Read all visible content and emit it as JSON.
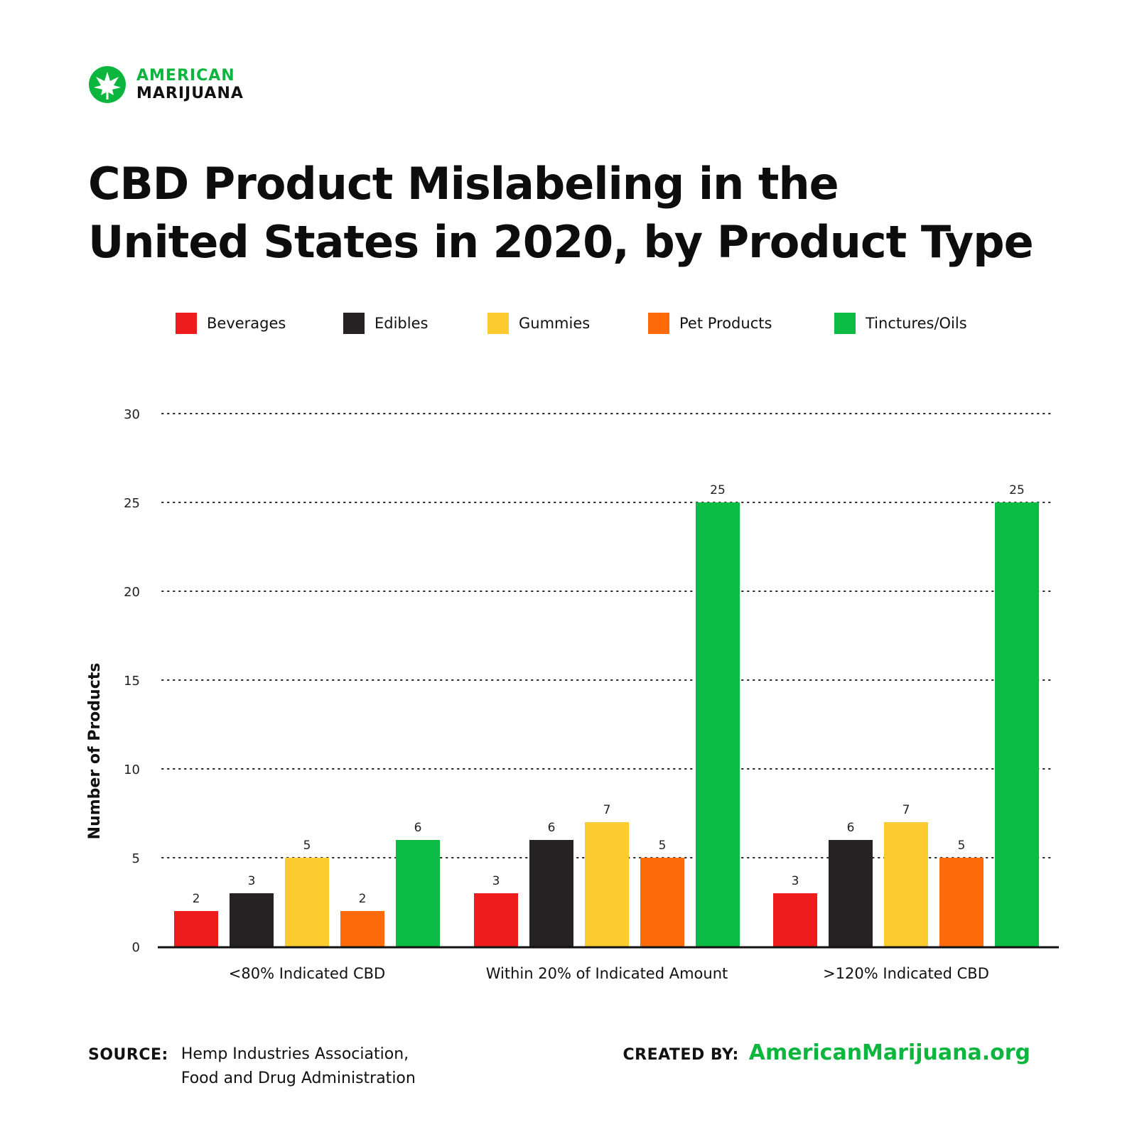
{
  "brand": {
    "logo_line1": "AMERICAN",
    "logo_line2": "MARIJUANA",
    "icon": "leaf-icon",
    "colors": {
      "green": "#0cb63e",
      "black": "#111111"
    }
  },
  "title_line1": "CBD Product Mislabeling in the",
  "title_line2": "United States in 2020, by Product Type",
  "footer": {
    "source_label": "SOURCE:",
    "source_line1": "Hemp Industries Association,",
    "source_line2": "Food and Drug Administration",
    "created_label": "CREATED BY:",
    "created_site": "AmericanMarijuana.org"
  },
  "chart_data": {
    "type": "bar",
    "title": "CBD Product Mislabeling in the United States in 2020, by Product Type",
    "xlabel": "",
    "ylabel": "Number of Products",
    "ylim": [
      0,
      30
    ],
    "yticks": [
      "0",
      "5",
      "10",
      "15",
      "20",
      "25",
      "30"
    ],
    "grid": "horizontal dotted",
    "legend_position": "top",
    "categories": [
      "<80% Indicated CBD",
      "Within 20% of Indicated Amount",
      ">120% Indicated CBD"
    ],
    "series": [
      {
        "name": "Beverages",
        "color": "#ee1c1c",
        "values": [
          2,
          3,
          3
        ]
      },
      {
        "name": "Edibles",
        "color": "#262223",
        "values": [
          3,
          6,
          6
        ]
      },
      {
        "name": "Gummies",
        "color": "#fccb30",
        "values": [
          5,
          7,
          7
        ]
      },
      {
        "name": "Pet Products",
        "color": "#fd6b0a",
        "values": [
          2,
          5,
          5
        ]
      },
      {
        "name": "Tinctures/Oils",
        "color": "#0cbb44",
        "values": [
          6,
          25,
          25
        ]
      }
    ]
  }
}
